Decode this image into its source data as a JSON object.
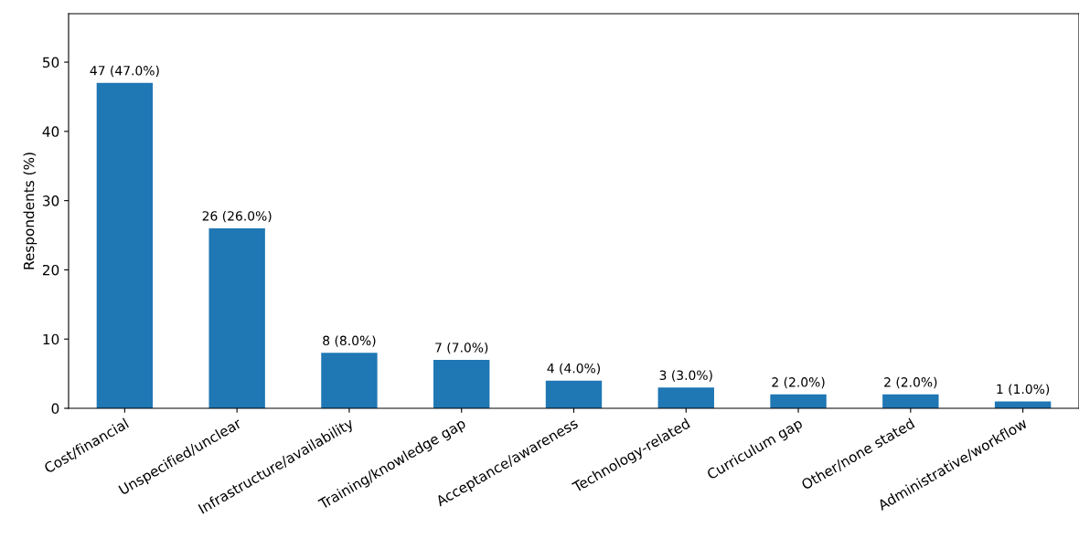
{
  "chart_data": {
    "type": "bar",
    "ylabel": "Respondents (%)",
    "categories": [
      "Cost/financial",
      "Unspecified/unclear",
      "Infrastructure/availability",
      "Training/knowledge gap",
      "Acceptance/awareness",
      "Technology-related",
      "Curriculum gap",
      "Other/none stated",
      "Administrative/workflow"
    ],
    "values": [
      47,
      26,
      8,
      7,
      4,
      3,
      2,
      2,
      1
    ],
    "value_labels": [
      "47 (47.0%)",
      "26 (26.0%)",
      "8 (8.0%)",
      "7 (7.0%)",
      "4 (4.0%)",
      "3 (3.0%)",
      "2 (2.0%)",
      "2 (2.0%)",
      "1 (1.0%)"
    ],
    "color": "#1f77b4",
    "ylim": [
      0,
      57
    ],
    "yticks": [
      0,
      10,
      20,
      30,
      40,
      50
    ],
    "grid": false
  }
}
